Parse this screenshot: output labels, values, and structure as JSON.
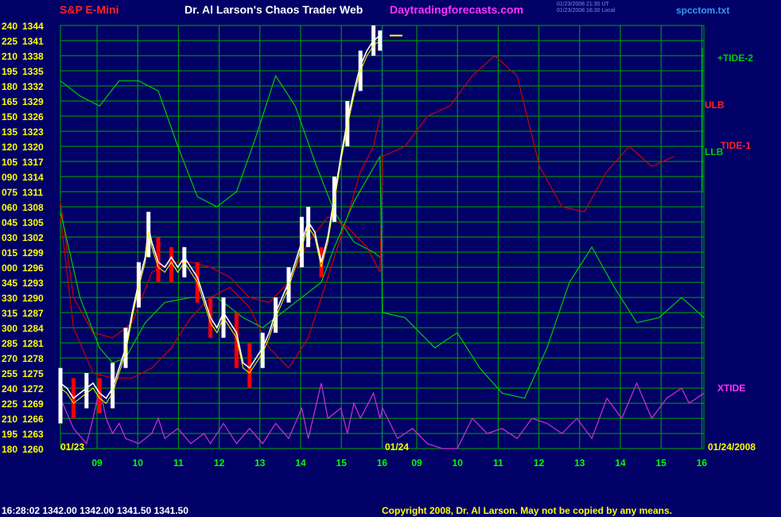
{
  "header": {
    "symbol": "S&P E-Mini",
    "title": "Dr. Al Larson's Chaos Trader Web",
    "site": "Daytradingforecasts.com",
    "file": "spcctom.txt",
    "timestamp_1": "01/23/2008 21:30 UT",
    "timestamp_2": "01/23/2008 16:30 Local"
  },
  "footer": {
    "quote": "16:28:02  1342.00 1342.00 1341.50 1341.50",
    "copyright": "Copyright 2008, Dr. Al Larson. May not be copied by any means."
  },
  "colors": {
    "background": "#000066",
    "grid": "#00aa00",
    "price": "#ffffff",
    "price_down": "#ff0000",
    "tide2": "#00cc00",
    "ulb": "#cc0000",
    "tide1": "#cc0000",
    "llb": "#00cc00",
    "xtide": "#cc33cc",
    "axis_text": "#ffff00",
    "hour_text": "#00ff00"
  },
  "chart_data": {
    "type": "line",
    "grid": true,
    "y_left_labels": [
      "240",
      "225",
      "210",
      "195",
      "180",
      "165",
      "150",
      "135",
      "120",
      "105",
      "090",
      "075",
      "060",
      "045",
      "030",
      "015",
      "000",
      "345",
      "330",
      "315",
      "300",
      "285",
      "270",
      "255",
      "240",
      "225",
      "210",
      "195",
      "180"
    ],
    "y_prices": [
      "1344",
      "1341",
      "1338",
      "1335",
      "1332",
      "1329",
      "1326",
      "1323",
      "1320",
      "1317",
      "1314",
      "1311",
      "1308",
      "1305",
      "1302",
      "1299",
      "1296",
      "1293",
      "1290",
      "1287",
      "1284",
      "1281",
      "1278",
      "1275",
      "1272",
      "1269",
      "1266",
      "1263",
      "1260"
    ],
    "ylim": [
      1260,
      1344
    ],
    "date_labels": {
      "left": "01/23",
      "mid": "01/24",
      "right": "01/24/2008"
    },
    "hour_ticks": [
      "09",
      "10",
      "11",
      "12",
      "13",
      "14",
      "15",
      "16",
      "09",
      "10",
      "11",
      "12",
      "13",
      "14",
      "15",
      "16"
    ],
    "series_labels": {
      "tide2": "+TIDE-2",
      "ulb": "ULB",
      "tide1": "TIDE-1",
      "llb": "LLB",
      "xtide": "XTIDE"
    },
    "price_close": [
      [
        0.0,
        1273
      ],
      [
        0.1,
        1272
      ],
      [
        0.2,
        1270
      ],
      [
        0.3,
        1271
      ],
      [
        0.4,
        1272
      ],
      [
        0.5,
        1273
      ],
      [
        0.6,
        1271
      ],
      [
        0.7,
        1270
      ],
      [
        0.8,
        1272
      ],
      [
        0.9,
        1276
      ],
      [
        1.0,
        1280
      ],
      [
        1.1,
        1287
      ],
      [
        1.2,
        1293
      ],
      [
        1.3,
        1298
      ],
      [
        1.35,
        1304
      ],
      [
        1.4,
        1301
      ],
      [
        1.5,
        1297
      ],
      [
        1.6,
        1296
      ],
      [
        1.7,
        1298
      ],
      [
        1.8,
        1296
      ],
      [
        1.9,
        1298
      ],
      [
        2.0,
        1296
      ],
      [
        2.1,
        1294
      ],
      [
        2.2,
        1290
      ],
      [
        2.3,
        1286
      ],
      [
        2.4,
        1284
      ],
      [
        2.5,
        1287
      ],
      [
        2.6,
        1285
      ],
      [
        2.7,
        1283
      ],
      [
        2.8,
        1277
      ],
      [
        2.9,
        1276
      ],
      [
        3.0,
        1278
      ],
      [
        3.1,
        1280
      ],
      [
        3.2,
        1283
      ],
      [
        3.3,
        1287
      ],
      [
        3.4,
        1290
      ],
      [
        3.5,
        1293
      ],
      [
        3.6,
        1297
      ],
      [
        3.7,
        1301
      ],
      [
        3.8,
        1305
      ],
      [
        3.9,
        1303
      ],
      [
        4.0,
        1297
      ],
      [
        4.1,
        1302
      ],
      [
        4.2,
        1310
      ],
      [
        4.3,
        1318
      ],
      [
        4.4,
        1325
      ],
      [
        4.5,
        1331
      ],
      [
        4.6,
        1336
      ],
      [
        4.7,
        1339
      ],
      [
        4.8,
        1341
      ],
      [
        4.9,
        1342
      ]
    ],
    "price_range": [
      [
        0.0,
        1265,
        1276
      ],
      [
        0.2,
        1266,
        1274
      ],
      [
        0.4,
        1268,
        1275
      ],
      [
        0.6,
        1267,
        1274
      ],
      [
        0.8,
        1268,
        1277
      ],
      [
        1.0,
        1276,
        1284
      ],
      [
        1.2,
        1288,
        1297
      ],
      [
        1.35,
        1298,
        1307
      ],
      [
        1.5,
        1293,
        1302
      ],
      [
        1.7,
        1293,
        1300
      ],
      [
        1.9,
        1294,
        1300
      ],
      [
        2.1,
        1289,
        1297
      ],
      [
        2.3,
        1282,
        1290
      ],
      [
        2.5,
        1282,
        1290
      ],
      [
        2.7,
        1276,
        1287
      ],
      [
        2.9,
        1272,
        1281
      ],
      [
        3.1,
        1276,
        1283
      ],
      [
        3.3,
        1283,
        1290
      ],
      [
        3.5,
        1289,
        1296
      ],
      [
        3.7,
        1296,
        1306
      ],
      [
        3.8,
        1300,
        1308
      ],
      [
        4.0,
        1294,
        1300
      ],
      [
        4.2,
        1305,
        1314
      ],
      [
        4.4,
        1320,
        1329
      ],
      [
        4.6,
        1331,
        1339
      ],
      [
        4.8,
        1338,
        1344
      ],
      [
        4.9,
        1339,
        1343
      ]
    ],
    "tide2": [
      [
        0.0,
        1307
      ],
      [
        0.3,
        1290
      ],
      [
        0.6,
        1280
      ],
      [
        0.8,
        1277
      ],
      [
        1.0,
        1278
      ],
      [
        1.3,
        1285
      ],
      [
        1.6,
        1289
      ],
      [
        2.0,
        1290
      ],
      [
        2.4,
        1290
      ],
      [
        2.8,
        1286
      ],
      [
        3.1,
        1284
      ],
      [
        3.4,
        1287
      ],
      [
        3.7,
        1290
      ],
      [
        4.0,
        1293
      ],
      [
        4.2,
        1300
      ],
      [
        4.5,
        1309
      ],
      [
        4.9,
        1318
      ],
      [
        5.0,
        1287
      ],
      [
        5.3,
        1286
      ],
      [
        5.7,
        1280
      ],
      [
        6.0,
        1283
      ],
      [
        6.3,
        1276
      ],
      [
        6.6,
        1271
      ],
      [
        6.9,
        1270
      ],
      [
        7.2,
        1280
      ],
      [
        7.5,
        1293
      ],
      [
        7.8,
        1300
      ],
      [
        8.1,
        1292
      ],
      [
        8.4,
        1285
      ],
      [
        8.7,
        1286
      ],
      [
        9.0,
        1290
      ],
      [
        9.3,
        1286
      ]
    ],
    "ulb": [
      [
        0.0,
        1309
      ],
      [
        0.2,
        1290
      ],
      [
        0.5,
        1283
      ],
      [
        0.8,
        1282
      ],
      [
        1.1,
        1285
      ],
      [
        1.4,
        1295
      ],
      [
        1.7,
        1297
      ],
      [
        2.0,
        1297
      ],
      [
        2.3,
        1296
      ],
      [
        2.6,
        1294
      ],
      [
        2.9,
        1290
      ],
      [
        3.2,
        1289
      ],
      [
        3.5,
        1293
      ],
      [
        3.8,
        1301
      ],
      [
        4.1,
        1306
      ],
      [
        4.4,
        1304
      ],
      [
        4.7,
        1300
      ],
      [
        4.9,
        1295
      ],
      [
        5.0,
        1318
      ],
      [
        5.3,
        1320
      ],
      [
        5.6,
        1326
      ],
      [
        5.9,
        1328
      ],
      [
        6.2,
        1334
      ],
      [
        6.5,
        1338
      ],
      [
        6.8,
        1334
      ],
      [
        7.1,
        1316
      ],
      [
        7.4,
        1308
      ],
      [
        7.7,
        1307
      ],
      [
        8.0,
        1315
      ],
      [
        8.3,
        1320
      ],
      [
        8.6,
        1316
      ],
      [
        8.9,
        1318
      ]
    ],
    "tide1": [
      [
        0.0,
        1306
      ],
      [
        0.2,
        1284
      ],
      [
        0.5,
        1275
      ],
      [
        0.8,
        1274
      ],
      [
        1.1,
        1274
      ],
      [
        1.4,
        1276
      ],
      [
        1.7,
        1280
      ],
      [
        2.0,
        1286
      ],
      [
        2.3,
        1290
      ],
      [
        2.6,
        1292
      ],
      [
        2.9,
        1288
      ],
      [
        3.2,
        1280
      ],
      [
        3.5,
        1276
      ],
      [
        3.8,
        1282
      ],
      [
        4.1,
        1294
      ],
      [
        4.4,
        1306
      ],
      [
        4.6,
        1315
      ],
      [
        4.8,
        1320
      ],
      [
        4.9,
        1326
      ]
    ],
    "llb": [
      [
        0.0,
        1333
      ],
      [
        0.3,
        1330
      ],
      [
        0.6,
        1328
      ],
      [
        0.9,
        1333
      ],
      [
        1.2,
        1333
      ],
      [
        1.5,
        1331
      ],
      [
        1.8,
        1320
      ],
      [
        2.1,
        1310
      ],
      [
        2.4,
        1308
      ],
      [
        2.7,
        1311
      ],
      [
        3.0,
        1322
      ],
      [
        3.3,
        1334
      ],
      [
        3.6,
        1328
      ],
      [
        3.9,
        1317
      ],
      [
        4.2,
        1307
      ],
      [
        4.5,
        1301
      ],
      [
        4.8,
        1299
      ],
      [
        4.9,
        1298
      ]
    ],
    "xtide": [
      [
        0.0,
        1270
      ],
      [
        0.2,
        1264
      ],
      [
        0.4,
        1261
      ],
      [
        0.5,
        1266
      ],
      [
        0.6,
        1272
      ],
      [
        0.7,
        1266
      ],
      [
        0.8,
        1263
      ],
      [
        0.9,
        1265
      ],
      [
        1.0,
        1262
      ],
      [
        1.2,
        1261
      ],
      [
        1.4,
        1263
      ],
      [
        1.5,
        1266
      ],
      [
        1.6,
        1262
      ],
      [
        1.8,
        1264
      ],
      [
        2.0,
        1261
      ],
      [
        2.2,
        1263
      ],
      [
        2.3,
        1261
      ],
      [
        2.5,
        1265
      ],
      [
        2.7,
        1261
      ],
      [
        2.9,
        1264
      ],
      [
        3.1,
        1261
      ],
      [
        3.3,
        1265
      ],
      [
        3.5,
        1262
      ],
      [
        3.7,
        1268
      ],
      [
        3.8,
        1262
      ],
      [
        4.0,
        1273
      ],
      [
        4.1,
        1266
      ],
      [
        4.3,
        1268
      ],
      [
        4.4,
        1263
      ],
      [
        4.5,
        1269
      ],
      [
        4.6,
        1266
      ],
      [
        4.8,
        1271
      ],
      [
        4.9,
        1266
      ],
      [
        5.0,
        1268
      ],
      [
        5.2,
        1262
      ],
      [
        5.4,
        1264
      ],
      [
        5.6,
        1261
      ],
      [
        5.8,
        1260
      ],
      [
        6.0,
        1260
      ],
      [
        6.2,
        1266
      ],
      [
        6.4,
        1263
      ],
      [
        6.6,
        1264
      ],
      [
        6.8,
        1262
      ],
      [
        7.0,
        1266
      ],
      [
        7.2,
        1265
      ],
      [
        7.4,
        1263
      ],
      [
        7.6,
        1266
      ],
      [
        7.8,
        1262
      ],
      [
        8.0,
        1270
      ],
      [
        8.2,
        1266
      ],
      [
        8.4,
        1273
      ],
      [
        8.6,
        1266
      ],
      [
        8.8,
        1270
      ],
      [
        9.0,
        1272
      ],
      [
        9.1,
        1269
      ],
      [
        9.3,
        1271
      ]
    ]
  }
}
